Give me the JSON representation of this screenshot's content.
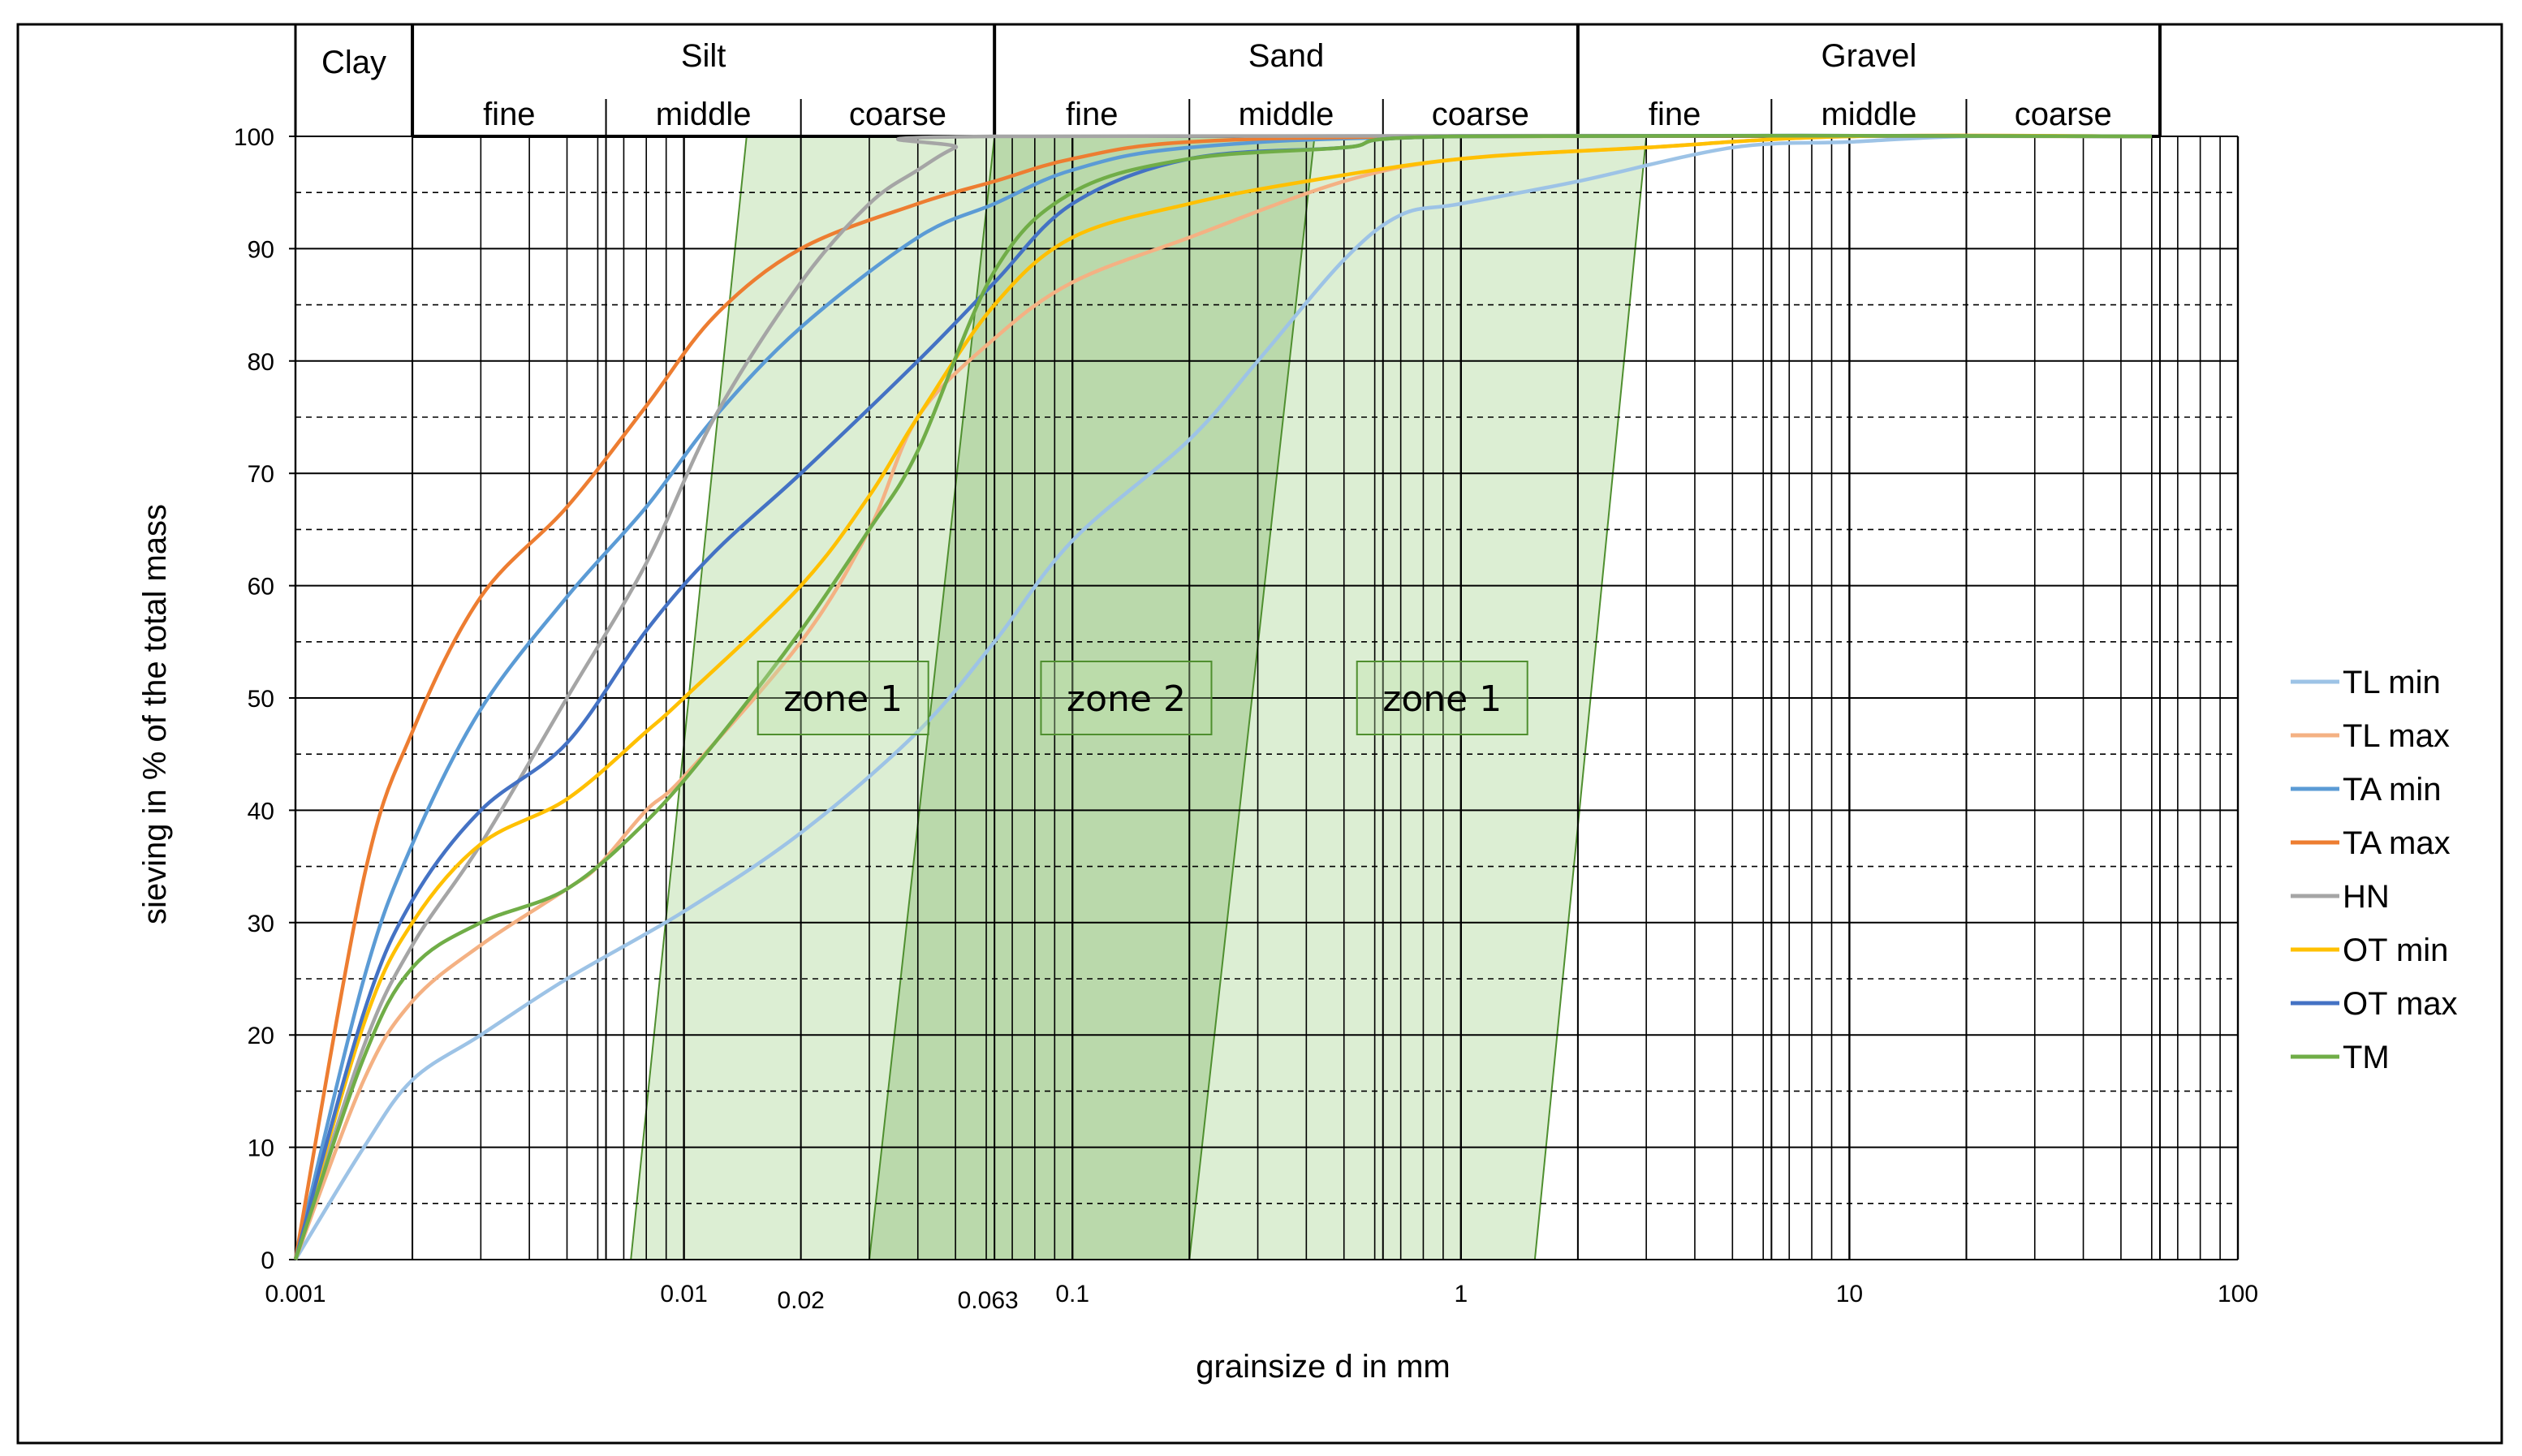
{
  "chart_data": {
    "type": "line",
    "xscale": "log",
    "xlim": [
      0.001,
      100
    ],
    "ylim": [
      0,
      100
    ],
    "xlabel": "grainsize d in mm",
    "ylabel": "sieving in % of the total mass",
    "xticks": [
      {
        "value": 0.001,
        "label": "0.001"
      },
      {
        "value": 0.01,
        "label": "0.01"
      },
      {
        "value": 0.02,
        "label": "0.02"
      },
      {
        "value": 0.063,
        "label": "0.063"
      },
      {
        "value": 0.1,
        "label": "0.1"
      },
      {
        "value": 1,
        "label": "1"
      },
      {
        "value": 10,
        "label": "10"
      },
      {
        "value": 100,
        "label": "100"
      }
    ],
    "yticks": [
      "0",
      "10",
      "20",
      "30",
      "40",
      "50",
      "60",
      "70",
      "80",
      "90",
      "100"
    ],
    "soil_classes": [
      {
        "name": "Clay",
        "from": 0.001,
        "to": 0.002,
        "subclasses": []
      },
      {
        "name": "Silt",
        "from": 0.002,
        "to": 0.063,
        "subclasses": [
          {
            "name": "fine",
            "from": 0.002,
            "to": 0.0063
          },
          {
            "name": "middle",
            "from": 0.0063,
            "to": 0.02
          },
          {
            "name": "coarse",
            "from": 0.02,
            "to": 0.063
          }
        ]
      },
      {
        "name": "Sand",
        "from": 0.063,
        "to": 2,
        "subclasses": [
          {
            "name": "fine",
            "from": 0.063,
            "to": 0.2
          },
          {
            "name": "middle",
            "from": 0.2,
            "to": 0.63
          },
          {
            "name": "coarse",
            "from": 0.63,
            "to": 2
          }
        ]
      },
      {
        "name": "Gravel",
        "from": 2,
        "to": 63,
        "subclasses": [
          {
            "name": "fine",
            "from": 2,
            "to": 6.3
          },
          {
            "name": "middle",
            "from": 6.3,
            "to": 20
          },
          {
            "name": "coarse",
            "from": 20,
            "to": 63
          }
        ]
      }
    ],
    "zones": [
      {
        "label": "zone 1",
        "kind": "outer",
        "polygon": [
          [
            0.0073,
            0
          ],
          [
            1.55,
            0
          ],
          [
            3.0,
            100
          ],
          [
            0.0145,
            100
          ]
        ],
        "label_at": [
          0.0155,
          50
        ]
      },
      {
        "label": "zone 2",
        "kind": "inner",
        "polygon": [
          [
            0.03,
            0
          ],
          [
            0.2,
            0
          ],
          [
            0.42,
            100
          ],
          [
            0.063,
            100
          ]
        ],
        "label_at": [
          0.083,
          50
        ]
      },
      {
        "label": "zone 1",
        "kind": "label",
        "polygon": [],
        "label_at": [
          0.54,
          50
        ]
      }
    ],
    "series": [
      {
        "name": "TL min",
        "color": "#9DC3E6",
        "points": [
          [
            0.001,
            0
          ],
          [
            0.0015,
            10
          ],
          [
            0.002,
            16
          ],
          [
            0.003,
            20
          ],
          [
            0.005,
            25
          ],
          [
            0.01,
            31
          ],
          [
            0.02,
            38
          ],
          [
            0.04,
            47
          ],
          [
            0.063,
            55
          ],
          [
            0.1,
            64
          ],
          [
            0.2,
            73
          ],
          [
            0.3,
            80
          ],
          [
            0.5,
            89
          ],
          [
            0.7,
            93
          ],
          [
            1,
            94
          ],
          [
            2,
            96
          ],
          [
            5,
            99
          ],
          [
            10,
            99.5
          ],
          [
            20,
            100
          ],
          [
            60,
            100
          ]
        ]
      },
      {
        "name": "TL max",
        "color": "#F4B183",
        "points": [
          [
            0.001,
            0
          ],
          [
            0.0015,
            16
          ],
          [
            0.002,
            23
          ],
          [
            0.003,
            28
          ],
          [
            0.005,
            33
          ],
          [
            0.006,
            35
          ],
          [
            0.008,
            40
          ],
          [
            0.01,
            43
          ],
          [
            0.02,
            55
          ],
          [
            0.03,
            65
          ],
          [
            0.04,
            75
          ],
          [
            0.063,
            82
          ],
          [
            0.1,
            87
          ],
          [
            0.2,
            91
          ],
          [
            0.5,
            96
          ],
          [
            1,
            98
          ],
          [
            3,
            99
          ],
          [
            10,
            100
          ],
          [
            60,
            100
          ]
        ]
      },
      {
        "name": "TA min",
        "color": "#5B9BD5",
        "points": [
          [
            0.001,
            0
          ],
          [
            0.0015,
            25
          ],
          [
            0.002,
            37
          ],
          [
            0.003,
            49
          ],
          [
            0.005,
            59
          ],
          [
            0.008,
            67
          ],
          [
            0.012,
            75
          ],
          [
            0.02,
            83
          ],
          [
            0.04,
            91
          ],
          [
            0.063,
            94
          ],
          [
            0.1,
            97
          ],
          [
            0.2,
            99
          ],
          [
            1,
            100
          ],
          [
            60,
            100
          ]
        ]
      },
      {
        "name": "TA max",
        "color": "#ED7D31",
        "points": [
          [
            0.001,
            0
          ],
          [
            0.0015,
            34
          ],
          [
            0.002,
            47
          ],
          [
            0.003,
            59
          ],
          [
            0.005,
            67
          ],
          [
            0.008,
            76
          ],
          [
            0.012,
            84
          ],
          [
            0.02,
            90
          ],
          [
            0.04,
            94
          ],
          [
            0.063,
            96
          ],
          [
            0.1,
            98
          ],
          [
            0.2,
            99.5
          ],
          [
            1,
            100
          ],
          [
            60,
            100
          ]
        ]
      },
      {
        "name": "HN",
        "color": "#A5A5A5",
        "points": [
          [
            0.001,
            0
          ],
          [
            0.0015,
            19
          ],
          [
            0.002,
            28
          ],
          [
            0.003,
            37
          ],
          [
            0.005,
            50
          ],
          [
            0.008,
            62
          ],
          [
            0.012,
            75
          ],
          [
            0.02,
            87
          ],
          [
            0.03,
            94
          ],
          [
            0.04,
            97
          ],
          [
            0.05,
            99
          ],
          [
            0.063,
            100
          ],
          [
            60,
            100
          ]
        ]
      },
      {
        "name": "OT min",
        "color": "#FFC000",
        "points": [
          [
            0.001,
            0
          ],
          [
            0.0015,
            21
          ],
          [
            0.002,
            30
          ],
          [
            0.003,
            37
          ],
          [
            0.005,
            41
          ],
          [
            0.008,
            47
          ],
          [
            0.01,
            50
          ],
          [
            0.02,
            60
          ],
          [
            0.03,
            68
          ],
          [
            0.04,
            75
          ],
          [
            0.063,
            85
          ],
          [
            0.1,
            91
          ],
          [
            0.2,
            94
          ],
          [
            0.4,
            96
          ],
          [
            1,
            98
          ],
          [
            3,
            99
          ],
          [
            10,
            100
          ],
          [
            60,
            100
          ]
        ]
      },
      {
        "name": "OT max",
        "color": "#4472C4",
        "points": [
          [
            0.001,
            0
          ],
          [
            0.0015,
            22
          ],
          [
            0.002,
            32
          ],
          [
            0.003,
            40
          ],
          [
            0.005,
            46
          ],
          [
            0.008,
            56
          ],
          [
            0.012,
            63
          ],
          [
            0.02,
            70
          ],
          [
            0.04,
            80
          ],
          [
            0.063,
            87
          ],
          [
            0.1,
            94
          ],
          [
            0.2,
            98
          ],
          [
            0.5,
            99
          ],
          [
            1,
            100
          ],
          [
            60,
            100
          ]
        ]
      },
      {
        "name": "TM",
        "color": "#70AD47",
        "points": [
          [
            0.001,
            0
          ],
          [
            0.0015,
            18
          ],
          [
            0.002,
            26
          ],
          [
            0.003,
            30
          ],
          [
            0.005,
            33
          ],
          [
            0.008,
            39
          ],
          [
            0.012,
            46
          ],
          [
            0.02,
            56
          ],
          [
            0.03,
            65
          ],
          [
            0.04,
            72
          ],
          [
            0.063,
            88
          ],
          [
            0.1,
            95
          ],
          [
            0.2,
            98
          ],
          [
            0.5,
            99
          ],
          [
            1,
            100
          ],
          [
            60,
            100
          ]
        ]
      }
    ]
  }
}
